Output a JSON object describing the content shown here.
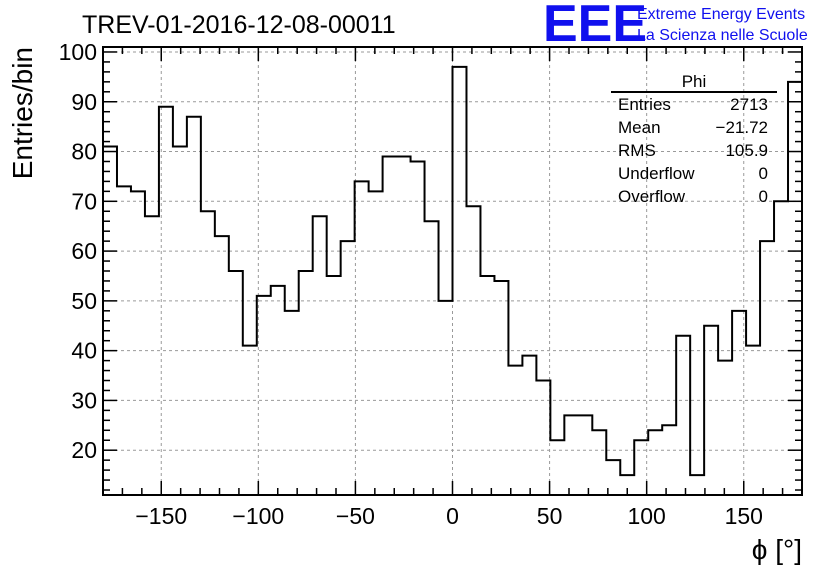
{
  "title": "TREV-01-2016-12-08-00011",
  "logo": {
    "mark": "EEE",
    "line1": "Extreme Energy Events",
    "line2": "La Scienza nelle Scuole",
    "color": "#1010ee"
  },
  "stats": {
    "name": "Phi",
    "rows": [
      {
        "label": "Entries",
        "value": "2713"
      },
      {
        "label": "Mean",
        "value": "−21.72"
      },
      {
        "label": "RMS",
        "value": "105.9"
      },
      {
        "label": "Underflow",
        "value": "0"
      },
      {
        "label": "Overflow",
        "value": "0"
      }
    ]
  },
  "chart_data": {
    "type": "histogram",
    "title": "TREV-01-2016-12-08-00011",
    "xlabel": "ϕ [°]",
    "ylabel": "Entries/bin",
    "xlim": [
      -180,
      180
    ],
    "ylim": [
      11,
      101
    ],
    "bin_width": 7.2,
    "bin_edges_start": -180,
    "values": [
      81,
      73,
      72,
      67,
      89,
      81,
      87,
      68,
      63,
      56,
      41,
      51,
      53,
      48,
      56,
      67,
      55,
      62,
      74,
      72,
      79,
      79,
      78,
      66,
      50,
      97,
      69,
      55,
      54,
      37,
      39,
      34,
      22,
      27,
      27,
      24,
      18,
      15,
      22,
      24,
      25,
      43,
      15,
      45,
      38,
      48,
      41,
      62,
      70,
      94
    ],
    "x_ticks": [
      -150,
      -100,
      -50,
      0,
      50,
      100,
      150
    ],
    "x_tick_labels": [
      "−150",
      "−100",
      "−50",
      "0",
      "50",
      "100",
      "150"
    ],
    "y_ticks": [
      20,
      30,
      40,
      50,
      60,
      70,
      80,
      90,
      100
    ],
    "y_tick_labels": [
      "20",
      "30",
      "40",
      "50",
      "60",
      "70",
      "80",
      "90",
      "100"
    ],
    "grid": true,
    "line_color": "#000000"
  }
}
